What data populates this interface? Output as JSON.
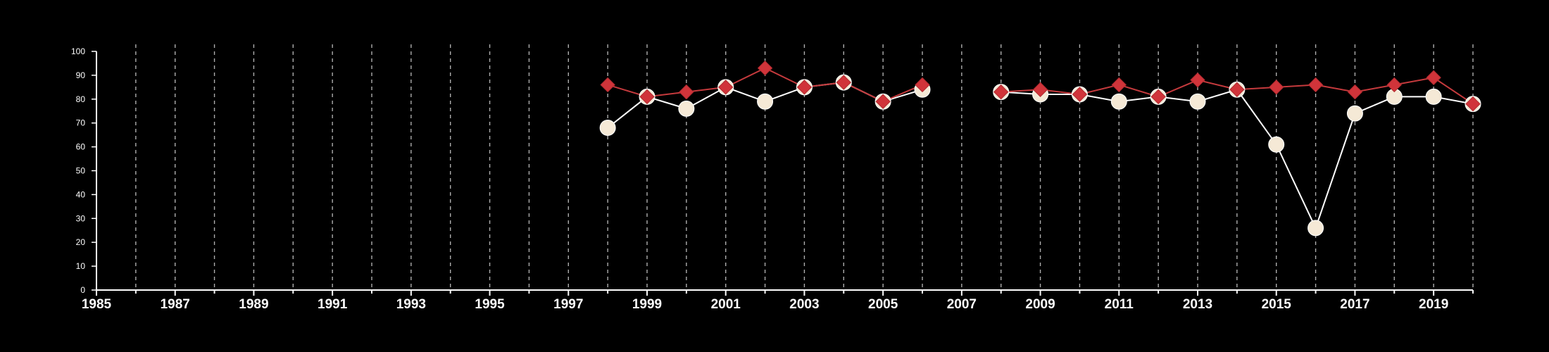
{
  "chart_data": {
    "type": "line",
    "title": "",
    "xlabel": "",
    "ylabel": "",
    "xlim": [
      1985,
      2020
    ],
    "ylim": [
      0,
      100
    ],
    "x_ticks": [
      1985,
      1987,
      1989,
      1991,
      1993,
      1995,
      1997,
      1999,
      2001,
      2003,
      2005,
      2007,
      2009,
      2011,
      2013,
      2015,
      2017,
      2019
    ],
    "x_tick_labels": [
      "1985",
      "1987",
      "1989",
      "1991",
      "1993",
      "1995",
      "1997",
      "1999",
      "2001",
      "2003",
      "2005",
      "2007",
      "2009",
      "2011",
      "2013",
      "2015",
      "2017",
      "2019"
    ],
    "y_ticks": [
      0,
      10,
      20,
      30,
      40,
      50,
      60,
      70,
      80,
      90,
      100
    ],
    "y_tick_labels": [
      "0",
      "10",
      "20",
      "30",
      "40",
      "50",
      "60",
      "70",
      "80",
      "90",
      "100"
    ],
    "grid": {
      "vertical": true,
      "horizontal": false,
      "style": "dashed",
      "every_year": true
    },
    "background": "#000000",
    "axis_color": "#ffffff",
    "grid_color": "#cccccc",
    "series": [
      {
        "marker": "circle",
        "color": "#f5e9d6",
        "line_color": "#ffffff",
        "x": [
          1998,
          1999,
          2000,
          2001,
          2002,
          2003,
          2004,
          2005,
          2006,
          2008,
          2009,
          2010,
          2011,
          2012,
          2013,
          2014,
          2015,
          2016,
          2017,
          2018,
          2019,
          2020
        ],
        "y": [
          68,
          81,
          76,
          85,
          79,
          85,
          87,
          79,
          84,
          83,
          82,
          82,
          79,
          81,
          79,
          84,
          61,
          26,
          74,
          81,
          81,
          78
        ],
        "segments": [
          [
            0,
            8
          ],
          [
            9,
            21
          ]
        ]
      },
      {
        "marker": "diamond",
        "color": "#d0343a",
        "line_color": "#c53a3d",
        "x": [
          1998,
          1999,
          2000,
          2001,
          2002,
          2003,
          2004,
          2005,
          2006,
          2008,
          2009,
          2010,
          2011,
          2012,
          2013,
          2014,
          2015,
          2016,
          2017,
          2018,
          2019,
          2020
        ],
        "y": [
          86,
          81,
          83,
          85,
          93,
          85,
          87,
          79,
          86,
          83,
          84,
          82,
          86,
          81,
          88,
          84,
          85,
          86,
          83,
          86,
          89,
          78
        ],
        "segments": [
          [
            0,
            8
          ],
          [
            9,
            21
          ]
        ]
      }
    ]
  }
}
